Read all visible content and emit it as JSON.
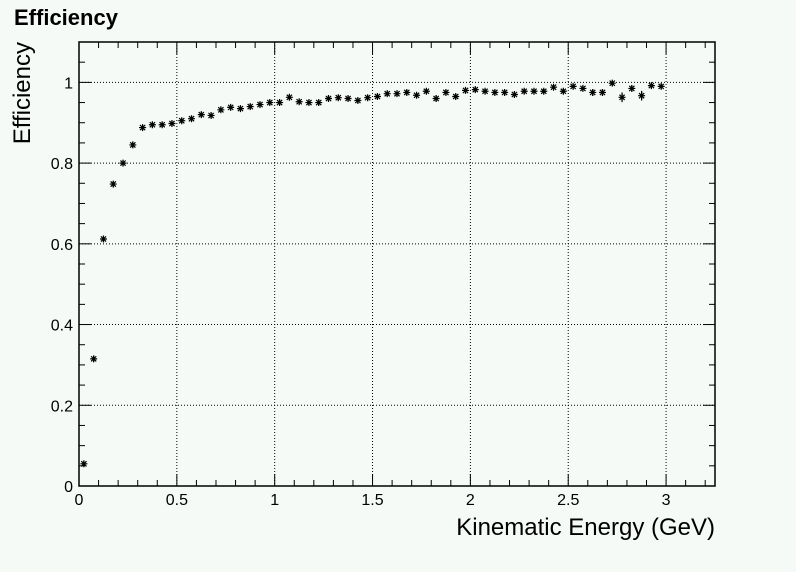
{
  "chart_data": {
    "type": "scatter",
    "title": "Efficiency",
    "xlabel": "Kinematic Energy (GeV)",
    "ylabel": "Efficiency",
    "xlim": [
      0,
      3.25
    ],
    "ylim": [
      0,
      1.1
    ],
    "xticks": [
      {
        "v": 0,
        "label": "0"
      },
      {
        "v": 0.5,
        "label": "0.5"
      },
      {
        "v": 1,
        "label": "1"
      },
      {
        "v": 1.5,
        "label": "1.5"
      },
      {
        "v": 2,
        "label": "2"
      },
      {
        "v": 2.5,
        "label": "2.5"
      },
      {
        "v": 3,
        "label": "3"
      }
    ],
    "yticks": [
      {
        "v": 0,
        "label": "0"
      },
      {
        "v": 0.2,
        "label": "0.2"
      },
      {
        "v": 0.4,
        "label": "0.4"
      },
      {
        "v": 0.6,
        "label": "0.6"
      },
      {
        "v": 0.8,
        "label": "0.8"
      },
      {
        "v": 1,
        "label": "1"
      }
    ],
    "grid": true,
    "marker": "asterisk",
    "marker_color": "#000000",
    "x": [
      0.025,
      0.075,
      0.125,
      0.175,
      0.225,
      0.275,
      0.325,
      0.375,
      0.425,
      0.475,
      0.525,
      0.575,
      0.625,
      0.675,
      0.725,
      0.775,
      0.825,
      0.875,
      0.925,
      0.975,
      1.025,
      1.075,
      1.125,
      1.175,
      1.225,
      1.275,
      1.325,
      1.375,
      1.425,
      1.475,
      1.525,
      1.575,
      1.625,
      1.675,
      1.725,
      1.775,
      1.825,
      1.875,
      1.925,
      1.975,
      2.025,
      2.075,
      2.125,
      2.175,
      2.225,
      2.275,
      2.325,
      2.375,
      2.425,
      2.475,
      2.525,
      2.575,
      2.625,
      2.675,
      2.725,
      2.775,
      2.825,
      2.875,
      2.925,
      2.975
    ],
    "y": [
      0.055,
      0.315,
      0.612,
      0.748,
      0.8,
      0.845,
      0.888,
      0.895,
      0.895,
      0.898,
      0.905,
      0.91,
      0.92,
      0.918,
      0.932,
      0.938,
      0.935,
      0.94,
      0.945,
      0.95,
      0.95,
      0.963,
      0.952,
      0.95,
      0.95,
      0.96,
      0.962,
      0.96,
      0.955,
      0.962,
      0.965,
      0.972,
      0.972,
      0.975,
      0.968,
      0.978,
      0.96,
      0.975,
      0.965,
      0.98,
      0.982,
      0.978,
      0.975,
      0.975,
      0.97,
      0.978,
      0.978,
      0.978,
      0.988,
      0.978,
      0.99,
      0.985,
      0.975,
      0.975,
      0.998,
      0.963,
      0.985,
      0.967,
      0.992,
      0.99
    ],
    "yerr": [
      0.006,
      0.008,
      0.008,
      0.007,
      0.007,
      0.007,
      0.006,
      0.006,
      0.006,
      0.006,
      0.006,
      0.006,
      0.006,
      0.006,
      0.006,
      0.006,
      0.006,
      0.006,
      0.006,
      0.006,
      0.006,
      0.006,
      0.006,
      0.006,
      0.006,
      0.006,
      0.006,
      0.006,
      0.006,
      0.006,
      0.006,
      0.006,
      0.006,
      0.006,
      0.006,
      0.006,
      0.008,
      0.006,
      0.006,
      0.006,
      0.006,
      0.006,
      0.006,
      0.006,
      0.006,
      0.006,
      0.006,
      0.006,
      0.006,
      0.006,
      0.006,
      0.006,
      0.008,
      0.008,
      0.006,
      0.012,
      0.008,
      0.012,
      0.006,
      0.006
    ]
  }
}
